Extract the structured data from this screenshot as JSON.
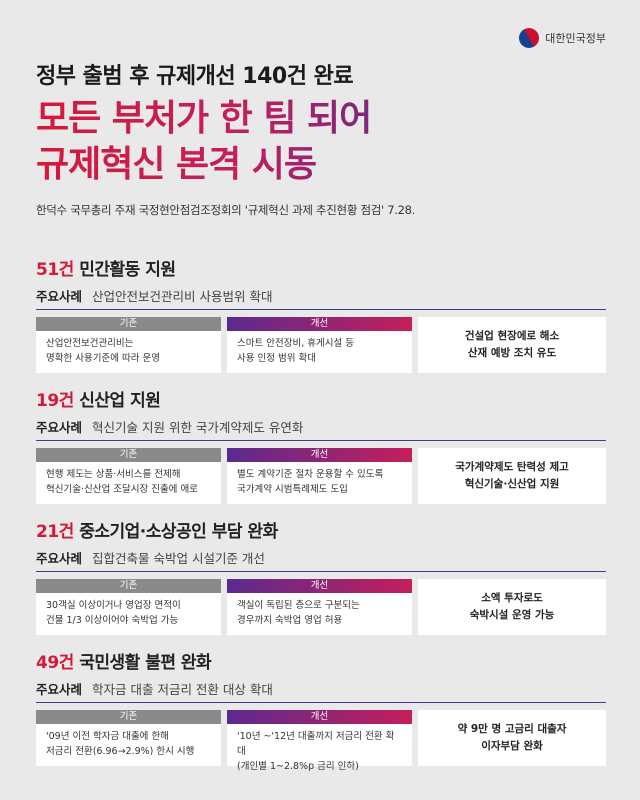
{
  "logo": {
    "text": "대한민국정부"
  },
  "header": {
    "subtitle": "정부 출범 후 규제개선 140건 완료",
    "title_line1": "모든 부처가 한 팀 되어",
    "title_line2": "규제혁신 본격 시동",
    "meeting": "한덕수 국무총리 주재 국정현안점검조정회의 '규제혁신 과제 추진현황 점검' 7.28."
  },
  "labels": {
    "case": "주요사례",
    "before": "기존",
    "after": "개선"
  },
  "sections": [
    {
      "count": "51건",
      "title": "민간활동 지원",
      "case": "산업안전보건관리비 사용범위 확대",
      "before": [
        "산업안전보건관리비는",
        "명확한 사용기준에 따라 운영"
      ],
      "after": [
        "스마트 안전장비, 휴게시설 등",
        "사용 인정 범위 확대"
      ],
      "result": [
        "건설업 현장에로 해소",
        "산재 예방 조치 유도"
      ]
    },
    {
      "count": "19건",
      "title": "신산업 지원",
      "case": "혁신기술 지원 위한 국가계약제도 유연화",
      "before": [
        "현행 제도는 상품·서비스를 전제해",
        "혁신기술·신산업 조달시장 진출에 애로"
      ],
      "after": [
        "별도 계약기준 절차 운용할 수 있도록",
        "국가계약 시범특례제도 도입"
      ],
      "result": [
        "국가계약제도 탄력성 제고",
        "혁신기술·신산업 지원"
      ]
    },
    {
      "count": "21건",
      "title": "중소기업·소상공인 부담 완화",
      "case": "집합건축물 숙박업 시설기준 개선",
      "before": [
        "30객실 이상이거나 영업장 면적이",
        "건물 1/3 이상이어야 숙박업 가능"
      ],
      "after": [
        "객실이 독립된 층으로 구분되는",
        "경우까지 숙박업 영업 허용"
      ],
      "result": [
        "소액 투자로도",
        "숙박시설 운영 가능"
      ]
    },
    {
      "count": "49건",
      "title": "국민생활 불편 완화",
      "case": "학자금 대출 저금리 전환 대상 확대",
      "before": [
        "'09년 이전 학자금 대출에 한해",
        "저금리 전환(6.96→2.9%) 한시 시행"
      ],
      "after": [
        "'10년 ~'12년 대출까지 저금리 전환 확대",
        "(개인별 1~2.8%p 금리 인하)"
      ],
      "result": [
        "약 9만 명 고금리 대출자",
        "이자부담 완화"
      ]
    }
  ]
}
